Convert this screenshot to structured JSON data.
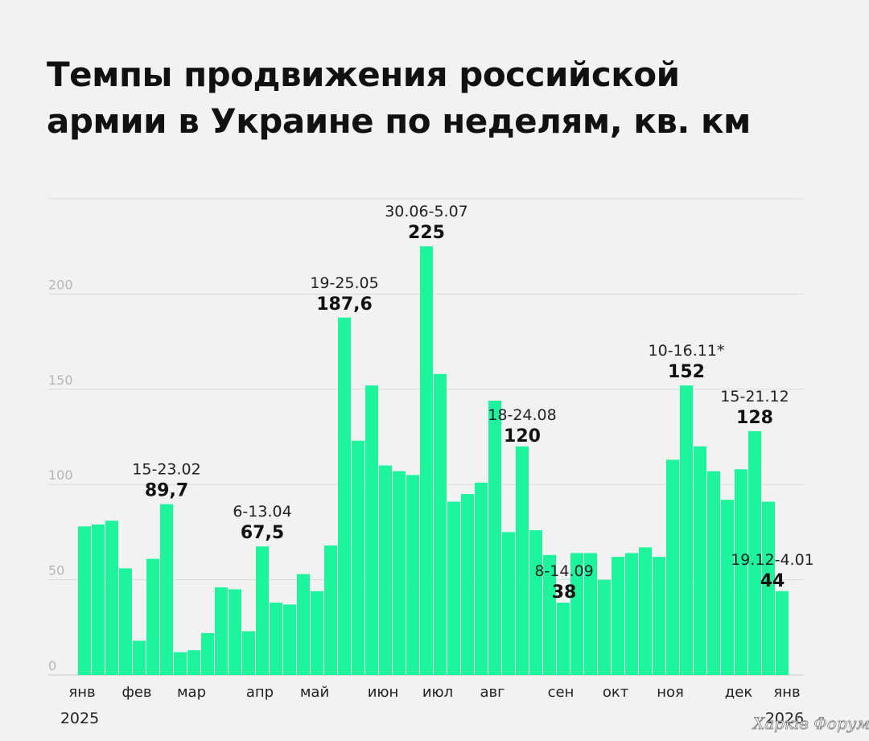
{
  "chart_data": {
    "type": "bar",
    "title_lines": [
      "Темпы продвижения российской",
      "армии в Украине по неделям, кв. км"
    ],
    "ylim": [
      0,
      250
    ],
    "y_ticks": [
      0,
      50,
      100,
      150,
      200
    ],
    "y_tick_labels": [
      "0",
      "50",
      "100",
      "150",
      "200"
    ],
    "grid": true,
    "bar_color": "#1cf59b",
    "grid_color": "#d9d9d9",
    "values": [
      78,
      79,
      81,
      56,
      18,
      61,
      89.7,
      12,
      13,
      22,
      46,
      45,
      23,
      67.5,
      38,
      37,
      53,
      44,
      68,
      187.6,
      123,
      152,
      110,
      107,
      105,
      225,
      158,
      91,
      95,
      101,
      144,
      75,
      120,
      76,
      63,
      38,
      64,
      64,
      50,
      62,
      64,
      67,
      62,
      113,
      152,
      120,
      107,
      92,
      108,
      128,
      91,
      44
    ],
    "month_labels": [
      {
        "label": "янв",
        "week": 0
      },
      {
        "label": "фев",
        "week": 4
      },
      {
        "label": "мар",
        "week": 8
      },
      {
        "label": "апр",
        "week": 13
      },
      {
        "label": "май",
        "week": 17
      },
      {
        "label": "июн",
        "week": 22
      },
      {
        "label": "июл",
        "week": 26
      },
      {
        "label": "авг",
        "week": 30
      },
      {
        "label": "сен",
        "week": 35
      },
      {
        "label": "окт",
        "week": 39
      },
      {
        "label": "ноя",
        "week": 43
      },
      {
        "label": "дек",
        "week": 48
      },
      {
        "label": "янв",
        "week": 52
      }
    ],
    "year_labels": [
      {
        "label": "2025",
        "week": 0
      },
      {
        "label": "2026",
        "week": 52
      }
    ],
    "annotations": [
      {
        "bar": 6,
        "date": "15-23.02",
        "value": "89,7"
      },
      {
        "bar": 13,
        "date": "6-13.04",
        "value": "67,5"
      },
      {
        "bar": 19,
        "date": "19-25.05",
        "value": "187,6"
      },
      {
        "bar": 25,
        "date": "30.06-5.07",
        "value": "225"
      },
      {
        "bar": 32,
        "date": "18-24.08",
        "value": "120"
      },
      {
        "bar": 35,
        "date": "8-14.09",
        "value": "38"
      },
      {
        "bar": 44,
        "date": "10-16.11*",
        "value": "152"
      },
      {
        "bar": 49,
        "date": "15-21.12",
        "value": "128"
      },
      {
        "bar": 51,
        "date": "19.12-4.01",
        "value": "44"
      }
    ]
  },
  "watermark": "Харків Форум"
}
